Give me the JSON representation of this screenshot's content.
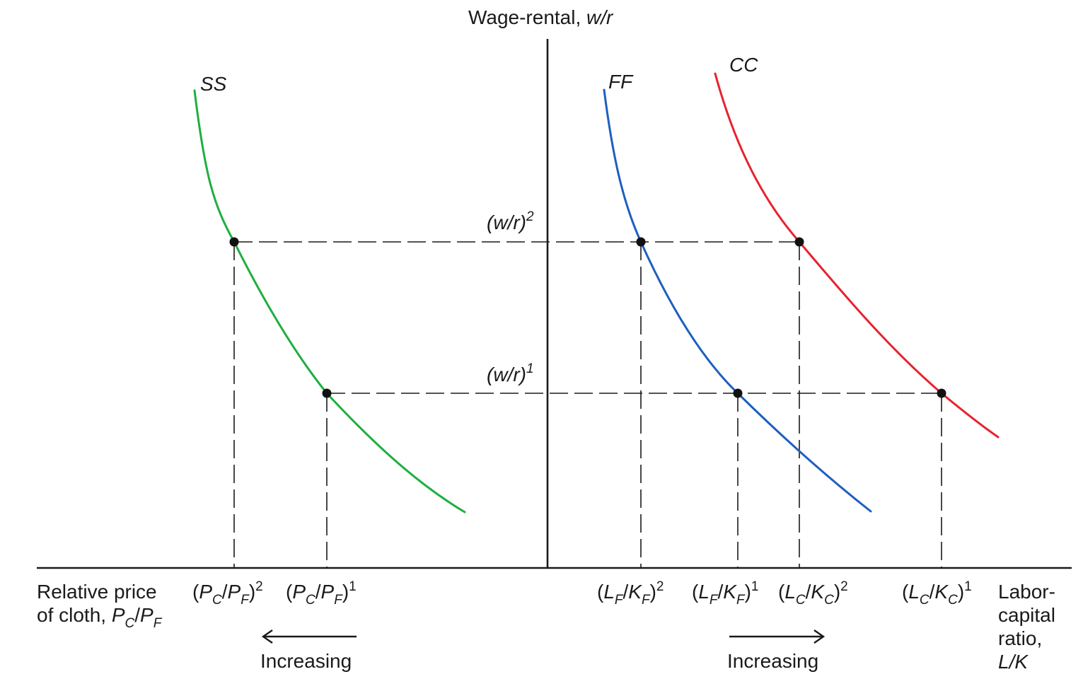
{
  "vertical_axis": {
    "label": "Wage-rental,",
    "label_italic": "w/r"
  },
  "left_axis": {
    "line1": "Relative price",
    "line2": "of cloth,",
    "P": "P",
    "C": "C",
    "slash": "/",
    "F": "F"
  },
  "right_axis": {
    "line1": "Labor-",
    "line2": "capital",
    "line3": "ratio,",
    "line4": "L/K"
  },
  "curves": [
    {
      "name": "SS",
      "color": "#1fae3f"
    },
    {
      "name": "FF",
      "color": "#1d5fbf"
    },
    {
      "name": "CC",
      "color": "#e8222e"
    }
  ],
  "wage_levels": [
    {
      "text": "(w/r)",
      "sup": "2"
    },
    {
      "text": "(w/r)",
      "sup": "1"
    }
  ],
  "tick_labels": {
    "pcpf2": {
      "sup": "2"
    },
    "pcpf1": {
      "sup": "1"
    },
    "lfkf2": {
      "sup": "2"
    },
    "lfkf1": {
      "sup": "1"
    },
    "lckc2": {
      "sup": "2"
    },
    "lckc1": {
      "sup": "1"
    }
  },
  "arrows": {
    "left": "Increasing",
    "right": "Increasing"
  }
}
